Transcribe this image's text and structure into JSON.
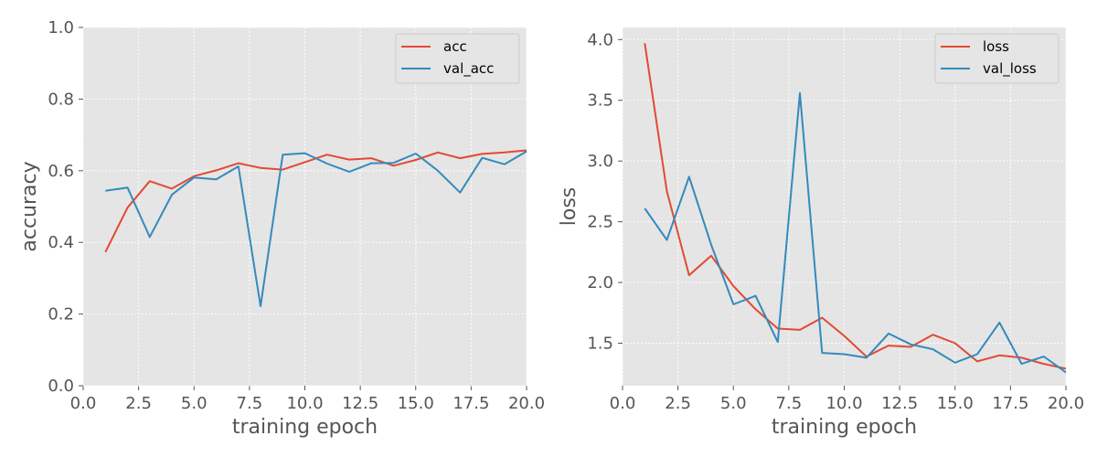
{
  "chart_data": [
    {
      "type": "line",
      "title": "",
      "xlabel": "training epoch",
      "ylabel": "accuracy",
      "xlim": [
        0,
        20
      ],
      "ylim": [
        0,
        1.0
      ],
      "xticks": [
        "0.0",
        "2.5",
        "5.0",
        "7.5",
        "10.0",
        "12.5",
        "15.0",
        "17.5",
        "20.0"
      ],
      "yticks": [
        "0.0",
        "0.2",
        "0.4",
        "0.6",
        "0.8",
        "1.0"
      ],
      "grid": true,
      "legend_position": "top-right",
      "x": [
        1,
        2,
        3,
        4,
        5,
        6,
        7,
        8,
        9,
        10,
        11,
        12,
        13,
        14,
        15,
        16,
        17,
        18,
        19,
        20
      ],
      "series": [
        {
          "name": "acc",
          "color": "#e24a33",
          "values": [
            0.373,
            0.497,
            0.571,
            0.55,
            0.585,
            0.601,
            0.621,
            0.608,
            0.603,
            0.624,
            0.645,
            0.631,
            0.635,
            0.614,
            0.63,
            0.651,
            0.635,
            0.647,
            0.651,
            0.657
          ]
        },
        {
          "name": "val_acc",
          "color": "#348abd",
          "values": [
            0.544,
            0.553,
            0.415,
            0.533,
            0.581,
            0.576,
            0.612,
            0.222,
            0.645,
            0.649,
            0.62,
            0.597,
            0.621,
            0.622,
            0.648,
            0.6,
            0.539,
            0.636,
            0.618,
            0.654
          ]
        }
      ]
    },
    {
      "type": "line",
      "title": "",
      "xlabel": "training epoch",
      "ylabel": "loss",
      "xlim": [
        0,
        20
      ],
      "ylim": [
        1.15,
        4.1
      ],
      "xticks": [
        "0.0",
        "2.5",
        "5.0",
        "7.5",
        "10.0",
        "12.5",
        "15.0",
        "17.5",
        "20.0"
      ],
      "yticks": [
        "1.5",
        "2.0",
        "2.5",
        "3.0",
        "3.5",
        "4.0"
      ],
      "grid": true,
      "legend_position": "top-right",
      "x": [
        1,
        2,
        3,
        4,
        5,
        6,
        7,
        8,
        9,
        10,
        11,
        12,
        13,
        14,
        15,
        16,
        17,
        18,
        19,
        20
      ],
      "series": [
        {
          "name": "loss",
          "color": "#e24a33",
          "values": [
            3.97,
            2.75,
            2.06,
            2.22,
            1.97,
            1.78,
            1.62,
            1.61,
            1.71,
            1.56,
            1.39,
            1.48,
            1.47,
            1.57,
            1.5,
            1.35,
            1.4,
            1.38,
            1.33,
            1.29
          ]
        },
        {
          "name": "val_loss",
          "color": "#348abd",
          "values": [
            2.61,
            2.35,
            2.87,
            2.31,
            1.82,
            1.89,
            1.51,
            3.56,
            1.42,
            1.41,
            1.38,
            1.58,
            1.49,
            1.45,
            1.34,
            1.41,
            1.67,
            1.33,
            1.39,
            1.26
          ]
        }
      ]
    }
  ]
}
